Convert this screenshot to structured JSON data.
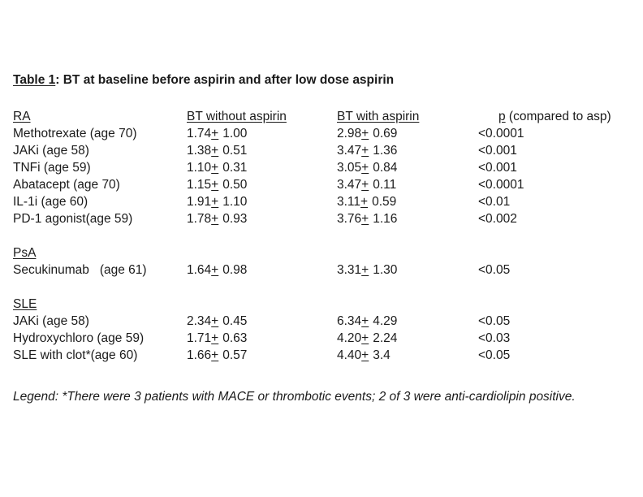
{
  "colors": {
    "background": "#ffffff",
    "text": "#1b1b1b"
  },
  "title": {
    "underlined": "Table 1",
    "rest": ": BT at baseline before aspirin and after low dose aspirin"
  },
  "table": {
    "plus_sign": "+",
    "header": {
      "col2": "BT without aspirin",
      "col3": "BT with aspirin",
      "p": "p",
      "p_suffix": " (compared to asp)"
    },
    "sections": [
      {
        "label": "RA",
        "rows": [
          {
            "drug": "Methotrexate (age 70)",
            "bt_without": {
              "mean": "1.74",
              "sd": "1.00"
            },
            "bt_with": {
              "mean": "2.98",
              "sd": "0.69"
            },
            "p": "<0.0001"
          },
          {
            "drug": "JAKi (age 58)",
            "bt_without": {
              "mean": "1.38",
              "sd": "0.51"
            },
            "bt_with": {
              "mean": "3.47",
              "sd": "1.36"
            },
            "p": "<0.001"
          },
          {
            "drug": "TNFi (age 59)",
            "bt_without": {
              "mean": "1.10",
              "sd": "0.31"
            },
            "bt_with": {
              "mean": "3.05",
              "sd": "0.84"
            },
            "p": "<0.001"
          },
          {
            "drug": "Abatacept (age 70)",
            "bt_without": {
              "mean": "1.15",
              "sd": "0.50"
            },
            "bt_with": {
              "mean": "3.47",
              "sd": "0.11"
            },
            "p": "<0.0001"
          },
          {
            "drug": "IL-1i (age 60)",
            "bt_without": {
              "mean": "1.91",
              "sd": "1.10"
            },
            "bt_with": {
              "mean": "3.11",
              "sd": "0.59"
            },
            "p": "<0.01"
          },
          {
            "drug": "PD-1 agonist(age 59)",
            "bt_without": {
              "mean": "1.78",
              "sd": "0.93"
            },
            "bt_with": {
              "mean": "3.76",
              "sd": "1.16"
            },
            "p": "<0.002"
          }
        ]
      },
      {
        "label": "PsA",
        "rows": [
          {
            "drug": "Secukinumab   (age 61)",
            "bt_without": {
              "mean": "1.64",
              "sd": "0.98"
            },
            "bt_with": {
              "mean": "3.31",
              "sd": "1.30"
            },
            "p": "<0.05"
          }
        ]
      },
      {
        "label": "SLE",
        "rows": [
          {
            "drug": "JAKi (age 58)",
            "bt_without": {
              "mean": "2.34",
              "sd": "0.45"
            },
            "bt_with": {
              "mean": "6.34",
              "sd": "4.29"
            },
            "p": "<0.05"
          },
          {
            "drug": "Hydroxychloro (age 59)",
            "bt_without": {
              "mean": "1.71",
              "sd": "0.63"
            },
            "bt_with": {
              "mean": "4.20",
              "sd": "2.24"
            },
            "p": "<0.03"
          },
          {
            "drug": "SLE with clot*(age 60)",
            "bt_without": {
              "mean": "1.66",
              "sd": "0.57"
            },
            "bt_with": {
              "mean": "4.40",
              "sd": "3.4"
            },
            "p": "<0.05"
          }
        ]
      }
    ]
  },
  "legend": {
    "text": "Legend: *There were 3 patients with MACE or thrombotic events; 2 of 3 were anti-cardiolipin positive."
  }
}
